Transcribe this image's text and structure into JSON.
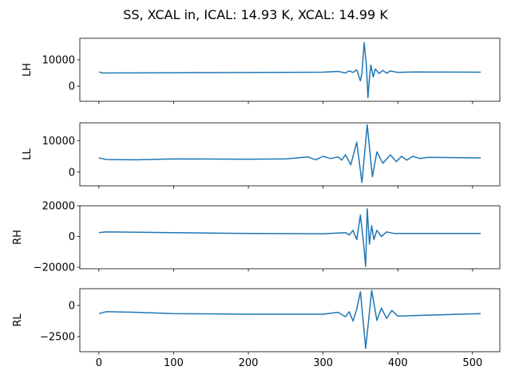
{
  "chart_data": {
    "title": "SS, XCAL in, ICAL: 14.93 K, XCAL: 14.99 K",
    "type": "line",
    "line_color": "#1f77b4",
    "xlim": [
      -25.5,
      536.5
    ],
    "xticks": [
      0,
      100,
      200,
      300,
      400,
      500
    ],
    "xtick_labels": [
      "0",
      "100",
      "200",
      "300",
      "400",
      "500"
    ],
    "subplots": [
      {
        "ylabel": "LH",
        "ylim": [
          -5760,
          18180
        ],
        "yticks": [
          0,
          10000
        ],
        "ytick_labels": [
          "0",
          "10000"
        ],
        "show_xticklabels": false,
        "points": [
          [
            0,
            5400
          ],
          [
            5,
            5000
          ],
          [
            100,
            5100
          ],
          [
            300,
            5300
          ],
          [
            320,
            5600
          ],
          [
            330,
            5000
          ],
          [
            335,
            5800
          ],
          [
            340,
            5200
          ],
          [
            345,
            6200
          ],
          [
            350,
            2000
          ],
          [
            352,
            5000
          ],
          [
            355,
            16500
          ],
          [
            358,
            8000
          ],
          [
            360,
            -4400
          ],
          [
            362,
            3000
          ],
          [
            364,
            8000
          ],
          [
            367,
            3500
          ],
          [
            370,
            6500
          ],
          [
            375,
            4800
          ],
          [
            380,
            6000
          ],
          [
            385,
            4900
          ],
          [
            390,
            5800
          ],
          [
            400,
            5200
          ],
          [
            420,
            5400
          ],
          [
            511,
            5300
          ]
        ]
      },
      {
        "ylabel": "LL",
        "ylim": [
          -4360,
          15640
        ],
        "yticks": [
          0,
          10000
        ],
        "ytick_labels": [
          "0",
          "10000"
        ],
        "show_xticklabels": false,
        "points": [
          [
            0,
            4500
          ],
          [
            10,
            4000
          ],
          [
            50,
            3900
          ],
          [
            100,
            4200
          ],
          [
            200,
            4100
          ],
          [
            250,
            4200
          ],
          [
            280,
            4800
          ],
          [
            290,
            3900
          ],
          [
            300,
            5000
          ],
          [
            310,
            4300
          ],
          [
            320,
            4800
          ],
          [
            325,
            3800
          ],
          [
            330,
            5500
          ],
          [
            337,
            2300
          ],
          [
            345,
            9500
          ],
          [
            352,
            -3300
          ],
          [
            359,
            15000
          ],
          [
            366,
            -1500
          ],
          [
            372,
            6400
          ],
          [
            380,
            2800
          ],
          [
            390,
            5500
          ],
          [
            398,
            3300
          ],
          [
            405,
            5000
          ],
          [
            412,
            3800
          ],
          [
            420,
            5000
          ],
          [
            430,
            4300
          ],
          [
            440,
            4700
          ],
          [
            511,
            4500
          ]
        ]
      },
      {
        "ylabel": "RH",
        "ylim": [
          -21000,
          20000
        ],
        "yticks": [
          -20000,
          0,
          20000
        ],
        "ytick_labels": [
          "−20000",
          "0",
          "20000"
        ],
        "show_xticklabels": false,
        "points": [
          [
            0,
            2500
          ],
          [
            10,
            3000
          ],
          [
            100,
            2500
          ],
          [
            200,
            2000
          ],
          [
            300,
            1800
          ],
          [
            330,
            2500
          ],
          [
            335,
            1000
          ],
          [
            340,
            4000
          ],
          [
            345,
            -2000
          ],
          [
            350,
            14000
          ],
          [
            354,
            -4000
          ],
          [
            357,
            -19500
          ],
          [
            359,
            18000
          ],
          [
            362,
            -5000
          ],
          [
            365,
            7000
          ],
          [
            368,
            -2000
          ],
          [
            372,
            4000
          ],
          [
            378,
            0
          ],
          [
            385,
            3000
          ],
          [
            395,
            2000
          ],
          [
            511,
            2000
          ]
        ]
      },
      {
        "ylabel": "RL",
        "ylim": [
          -3710,
          1346
        ],
        "yticks": [
          -2500,
          0
        ],
        "ytick_labels": [
          "−2500",
          "0"
        ],
        "show_xticklabels": true,
        "points": [
          [
            0,
            -650
          ],
          [
            10,
            -500
          ],
          [
            50,
            -550
          ],
          [
            100,
            -650
          ],
          [
            200,
            -700
          ],
          [
            300,
            -700
          ],
          [
            320,
            -550
          ],
          [
            330,
            -900
          ],
          [
            335,
            -500
          ],
          [
            340,
            -1250
          ],
          [
            345,
            -300
          ],
          [
            350,
            1100
          ],
          [
            357,
            -3450
          ],
          [
            365,
            1200
          ],
          [
            372,
            -1200
          ],
          [
            378,
            -200
          ],
          [
            385,
            -1050
          ],
          [
            392,
            -400
          ],
          [
            400,
            -850
          ],
          [
            511,
            -650
          ]
        ]
      }
    ]
  }
}
